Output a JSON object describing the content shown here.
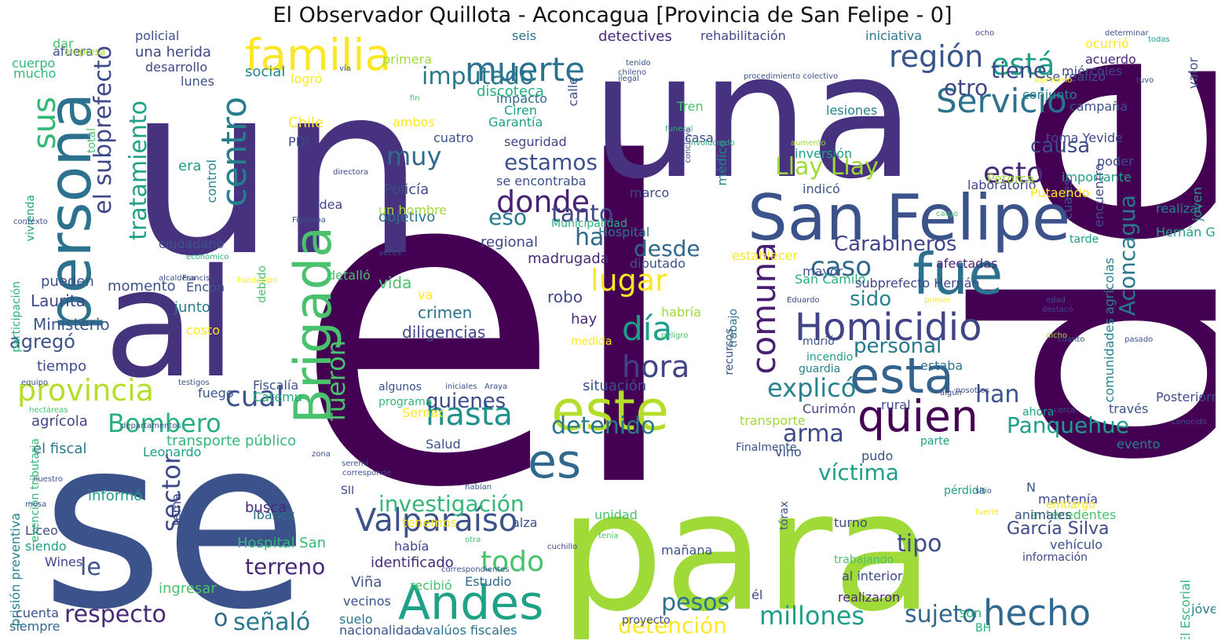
{
  "title": "El Observador Quillota - Aconcagua [Provincia de San Felipe - 0]",
  "palette": [
    "#440154",
    "#46327e",
    "#365c8d",
    "#277f8e",
    "#1fa187",
    "#4ac16d",
    "#a0da39",
    "#fde725"
  ],
  "words": [
    {
      "text": "el",
      "color": "#440154"
    },
    {
      "text": "de",
      "color": "#440154"
    },
    {
      "text": "se",
      "color": "#3b528b"
    },
    {
      "text": "un",
      "color": "#46327e"
    },
    {
      "text": "una",
      "color": "#46327e"
    },
    {
      "text": "para",
      "color": "#a0da39"
    },
    {
      "text": "al",
      "color": "#46337e"
    },
    {
      "text": "San Felipe",
      "color": "#3b528b"
    },
    {
      "text": "persona",
      "color": "#2c728e"
    },
    {
      "text": "familia",
      "color": "#fde725"
    },
    {
      "text": "Brigada",
      "color": "#4ac16d"
    },
    {
      "text": "Andes",
      "color": "#1fa187"
    },
    {
      "text": "este",
      "color": "#b5de2b"
    },
    {
      "text": "Homicidio",
      "color": "#414487"
    },
    {
      "text": "fue",
      "color": "#2c728e"
    },
    {
      "text": "esta",
      "color": "#33638d"
    },
    {
      "text": "quien",
      "color": "#440154"
    },
    {
      "text": "es",
      "color": "#31688e"
    },
    {
      "text": "hecho",
      "color": "#31688e"
    },
    {
      "text": "Valparaíso",
      "color": "#3b528b"
    },
    {
      "text": "Servicio",
      "color": "#2c728e"
    },
    {
      "text": "región",
      "color": "#39568c"
    },
    {
      "text": "está",
      "color": "#1f9e89"
    },
    {
      "text": "muerte",
      "color": "#2c728e"
    },
    {
      "text": "centro",
      "color": "#277f8e"
    },
    {
      "text": "sus",
      "color": "#35b779"
    },
    {
      "text": "donde",
      "color": "#482173"
    },
    {
      "text": "comuna",
      "color": "#481f70"
    },
    {
      "text": "el subprefecto",
      "color": "#3e4989"
    },
    {
      "text": "provincia",
      "color": "#b5de2b"
    },
    {
      "text": "hasta",
      "color": "#21918c"
    },
    {
      "text": "hora",
      "color": "#414487"
    },
    {
      "text": "día",
      "color": "#1f9e89"
    },
    {
      "text": "lugar",
      "color": "#fde725"
    },
    {
      "text": "cual",
      "color": "#3b528b"
    },
    {
      "text": "Bombero",
      "color": "#29af7f"
    },
    {
      "text": "sector",
      "color": "#3e4989"
    },
    {
      "text": "imputado",
      "color": "#2a788e"
    },
    {
      "text": "tratamiento",
      "color": "#1fa187"
    },
    {
      "text": "fueron",
      "color": "#4ac16d"
    },
    {
      "text": "esto",
      "color": "#482878"
    },
    {
      "text": "causa",
      "color": "#3e4989"
    },
    {
      "text": "Llay Llay",
      "color": "#a0da39"
    },
    {
      "text": "Aconcagua",
      "color": "#2a788e"
    },
    {
      "text": "Panquehue",
      "color": "#1f9e89"
    },
    {
      "text": "Carabineros",
      "color": "#404688"
    },
    {
      "text": "caso",
      "color": "#31688e"
    },
    {
      "text": "explicó",
      "color": "#26828e"
    },
    {
      "text": "han",
      "color": "#3b528b"
    },
    {
      "text": "arma",
      "color": "#3e4989"
    },
    {
      "text": "víctima",
      "color": "#1f9e89"
    },
    {
      "text": "investigación",
      "color": "#35b779"
    },
    {
      "text": "todo",
      "color": "#4ac16d"
    },
    {
      "text": "terreno",
      "color": "#482878"
    },
    {
      "text": "le",
      "color": "#3b528b"
    },
    {
      "text": "respecto",
      "color": "#482878"
    },
    {
      "text": "señaló",
      "color": "#2a788e"
    },
    {
      "text": "o",
      "color": "#31688e"
    },
    {
      "text": "pesos",
      "color": "#2c728e"
    },
    {
      "text": "millones",
      "color": "#1f9e89"
    },
    {
      "text": "sujeto",
      "color": "#31688e"
    },
    {
      "text": "detención",
      "color": "#fde725"
    },
    {
      "text": "tipo",
      "color": "#3e4989"
    },
    {
      "text": "García Silva",
      "color": "#3e4989"
    },
    {
      "text": "agregó",
      "color": "#3b528b"
    },
    {
      "text": "muy",
      "color": "#31688e"
    },
    {
      "text": "estamos",
      "color": "#3b528b"
    },
    {
      "text": "eso",
      "color": "#2a788e"
    },
    {
      "text": "tanto",
      "color": "#404688"
    },
    {
      "text": "ha",
      "color": "#31688e"
    },
    {
      "text": "desde",
      "color": "#31688e"
    },
    {
      "text": "quienes",
      "color": "#3e4989"
    },
    {
      "text": "detenido",
      "color": "#2a788e"
    },
    {
      "text": "otro",
      "color": "#404688"
    },
    {
      "text": "tiene",
      "color": "#3e4989"
    },
    {
      "text": "sido",
      "color": "#26828e"
    },
    {
      "text": "personal",
      "color": "#2a788e"
    },
    {
      "text": "Laurita",
      "color": "#3e4989"
    },
    {
      "text": "Ministerio",
      "color": "#3b528b"
    },
    {
      "text": "tiempo",
      "color": "#3e4989"
    },
    {
      "text": "pueden",
      "color": "#3b528b"
    },
    {
      "text": "momento",
      "color": "#3b528b"
    },
    {
      "text": "junto",
      "color": "#2a788e"
    },
    {
      "text": "robo",
      "color": "#404688"
    },
    {
      "text": "hay",
      "color": "#482878"
    },
    {
      "text": "crimen",
      "color": "#2c728e"
    },
    {
      "text": "diligencias",
      "color": "#3e4989"
    },
    {
      "text": "vida",
      "color": "#4ac16d"
    },
    {
      "text": "Policía",
      "color": "#3e4989"
    },
    {
      "text": "objetivo",
      "color": "#2c728e"
    },
    {
      "text": "un hombre",
      "color": "#a0da39"
    },
    {
      "text": "regional",
      "color": "#3e4989"
    },
    {
      "text": "madrugada",
      "color": "#482878"
    },
    {
      "text": "diputado",
      "color": "#3b528b"
    },
    {
      "text": "Hospital",
      "color": "#2c728e"
    },
    {
      "text": "situación",
      "color": "#3b528b"
    },
    {
      "text": "fuego",
      "color": "#3b528b"
    },
    {
      "text": "Fiscalía",
      "color": "#3b528b"
    },
    {
      "text": "Catemu",
      "color": "#29af7f"
    },
    {
      "text": "transporte público",
      "color": "#35b779"
    },
    {
      "text": "el fiscal",
      "color": "#2a788e"
    },
    {
      "text": "agrícola",
      "color": "#404688"
    },
    {
      "text": "Leonardo",
      "color": "#1f9e89"
    },
    {
      "text": "informó",
      "color": "#1f9e89"
    },
    {
      "text": "Ibáñez",
      "color": "#2c728e"
    },
    {
      "text": "busca",
      "color": "#482878"
    },
    {
      "text": "Hospital San",
      "color": "#35b779"
    },
    {
      "text": "identificado",
      "color": "#482878"
    },
    {
      "text": "había",
      "color": "#3e4989"
    },
    {
      "text": "Viña",
      "color": "#3b528b"
    },
    {
      "text": "Estudio",
      "color": "#31688e"
    },
    {
      "text": "recibió",
      "color": "#4ac16d"
    },
    {
      "text": "vecinos",
      "color": "#3b528b"
    },
    {
      "text": "suelo",
      "color": "#2c728e"
    },
    {
      "text": "nacionalidad",
      "color": "#3b528b"
    },
    {
      "text": "avalúos fiscales",
      "color": "#2c728e"
    },
    {
      "text": "siempre",
      "color": "#31688e"
    },
    {
      "text": "cuenta",
      "color": "#3b528b"
    },
    {
      "text": "Wines",
      "color": "#404688"
    },
    {
      "text": "siendo",
      "color": "#1f9e89"
    },
    {
      "text": "Liceo",
      "color": "#3b528b"
    },
    {
      "text": "prisión preventiva",
      "color": "#26828e"
    },
    {
      "text": "exención tributaria",
      "color": "#35b779"
    },
    {
      "text": "participación",
      "color": "#29af7f"
    },
    {
      "text": "vivienda",
      "color": "#1fa187"
    },
    {
      "text": "total",
      "color": "#4ac16d"
    },
    {
      "text": "cuerpo",
      "color": "#35b779"
    },
    {
      "text": "mucho",
      "color": "#35b779"
    },
    {
      "text": "dar",
      "color": "#4ac16d"
    },
    {
      "text": "afuera",
      "color": "#3b528b"
    },
    {
      "text": "empresa",
      "color": "#a0da39"
    },
    {
      "text": "policial",
      "color": "#3b528b"
    },
    {
      "text": "una herida",
      "color": "#3e4989"
    },
    {
      "text": "desarrollo",
      "color": "#3e4989"
    },
    {
      "text": "social",
      "color": "#26828e"
    },
    {
      "text": "logró",
      "color": "#fde725"
    },
    {
      "text": "lunes",
      "color": "#3b528b"
    },
    {
      "text": "Chile",
      "color": "#fde725"
    },
    {
      "text": "PDI",
      "color": "#3e4989"
    },
    {
      "text": "era",
      "color": "#1f9e89"
    },
    {
      "text": "control",
      "color": "#26828e"
    },
    {
      "text": "idea",
      "color": "#404688"
    },
    {
      "text": "ciudadano",
      "color": "#3b528b"
    },
    {
      "text": "debido",
      "color": "#4ac16d"
    },
    {
      "text": "Encón",
      "color": "#3b528b"
    },
    {
      "text": "costo",
      "color": "#fde725"
    },
    {
      "text": "tema",
      "color": "#3e4989"
    },
    {
      "text": "ingresar",
      "color": "#4ac16d"
    },
    {
      "text": "primera",
      "color": "#a0da39"
    },
    {
      "text": "ambos",
      "color": "#fde725"
    },
    {
      "text": "cuatro",
      "color": "#3b528b"
    },
    {
      "text": "impacto",
      "color": "#31688e"
    },
    {
      "text": "Ciren",
      "color": "#1f9e89"
    },
    {
      "text": "Garantía",
      "color": "#1f9e89"
    },
    {
      "text": "calle",
      "color": "#3b528b"
    },
    {
      "text": "discoteca",
      "color": "#29af7f"
    },
    {
      "text": "seguridad",
      "color": "#404688"
    },
    {
      "text": "se encontraba",
      "color": "#3b528b"
    },
    {
      "text": "seis",
      "color": "#2c728e"
    },
    {
      "text": "detectives",
      "color": "#482878"
    },
    {
      "text": "rehabilitación",
      "color": "#404688"
    },
    {
      "text": "iniciativa",
      "color": "#2a788e"
    },
    {
      "text": "ocurrió",
      "color": "#fde725"
    },
    {
      "text": "acuerdo",
      "color": "#482878"
    },
    {
      "text": "se realizó",
      "color": "#3b528b"
    },
    {
      "text": "miércoles",
      "color": "#404688"
    },
    {
      "text": "conjunto",
      "color": "#26828e"
    },
    {
      "text": "campaña",
      "color": "#3b528b"
    },
    {
      "text": "lesiones",
      "color": "#26828e"
    },
    {
      "text": "Tren",
      "color": "#4ac16d"
    },
    {
      "text": "casa",
      "color": "#3e4989"
    },
    {
      "text": "médico",
      "color": "#26828e"
    },
    {
      "text": "inversión",
      "color": "#1f9e89"
    },
    {
      "text": "poder",
      "color": "#3e4989"
    },
    {
      "text": "encuentro",
      "color": "#3e4989"
    },
    {
      "text": "toma Yevide",
      "color": "#3e4989"
    },
    {
      "text": "importante",
      "color": "#1f9e89"
    },
    {
      "text": "cuales",
      "color": "#3b528b"
    },
    {
      "text": "laboratorio",
      "color": "#404688"
    },
    {
      "text": "Putaendo",
      "color": "#fde725"
    },
    {
      "text": "Petorca",
      "color": "#a0da39"
    },
    {
      "text": "indicó",
      "color": "#3b528b"
    },
    {
      "text": "marco",
      "color": "#3e4989"
    },
    {
      "text": "realizar",
      "color": "#26828e"
    },
    {
      "text": "Hernán García",
      "color": "#1fa187"
    },
    {
      "text": "tarde",
      "color": "#1f9e89"
    },
    {
      "text": "establecer",
      "color": "#fde725"
    },
    {
      "text": "mayor",
      "color": "#3b528b"
    },
    {
      "text": "afectadas",
      "color": "#482878"
    },
    {
      "text": "San Camilo",
      "color": "#29af7f"
    },
    {
      "text": "subprefecto Hernán",
      "color": "#3e4989"
    },
    {
      "text": "comunidades agrícolas",
      "color": "#26828e"
    },
    {
      "text": "valor",
      "color": "#3b528b"
    },
    {
      "text": "joven",
      "color": "#1f9e89"
    },
    {
      "text": "murió",
      "color": "#3b528b"
    },
    {
      "text": "incendio",
      "color": "#1f9e89"
    },
    {
      "text": "guardia",
      "color": "#26828e"
    },
    {
      "text": "estaba",
      "color": "#2c728e"
    },
    {
      "text": "recursos",
      "color": "#3b528b"
    },
    {
      "text": "trabajo",
      "color": "#2c728e"
    },
    {
      "text": "rural",
      "color": "#3e4989"
    },
    {
      "text": "Curimón",
      "color": "#404688"
    },
    {
      "text": "transporte",
      "color": "#a0da39"
    },
    {
      "text": "vino",
      "color": "#3b528b"
    },
    {
      "text": "pudo",
      "color": "#3b528b"
    },
    {
      "text": "Finalmente",
      "color": "#3b528b"
    },
    {
      "text": "ahora",
      "color": "#1f9e89"
    },
    {
      "text": "través",
      "color": "#3b528b"
    },
    {
      "text": "Posteriormente",
      "color": "#3e4989"
    },
    {
      "text": "evento",
      "color": "#26828e"
    },
    {
      "text": "parte",
      "color": "#1f9e89"
    },
    {
      "text": "N",
      "color": "#3b528b"
    },
    {
      "text": "mantenía",
      "color": "#3e4989"
    },
    {
      "text": "embargo",
      "color": "#fde725"
    },
    {
      "text": "antecedentes",
      "color": "#4ac16d"
    },
    {
      "text": "animales",
      "color": "#3b528b"
    },
    {
      "text": "vehículo",
      "color": "#3b528b"
    },
    {
      "text": "información",
      "color": "#3e4989"
    },
    {
      "text": "pérdida",
      "color": "#1f9e89"
    },
    {
      "text": "turno",
      "color": "#3e4989"
    },
    {
      "text": "trabajando",
      "color": "#4ac16d"
    },
    {
      "text": "al interior",
      "color": "#3e4989"
    },
    {
      "text": "tórax",
      "color": "#3b528b"
    },
    {
      "text": "realizaron",
      "color": "#482878"
    },
    {
      "text": "son",
      "color": "#29af7f"
    },
    {
      "text": "él",
      "color": "#3e4989"
    },
    {
      "text": "El Escorial",
      "color": "#35b779"
    },
    {
      "text": "jóvenes",
      "color": "#26828e"
    },
    {
      "text": "BH",
      "color": "#29af7f"
    },
    {
      "text": "mañana",
      "color": "#3b528b"
    },
    {
      "text": "unidad",
      "color": "#4ac16d"
    },
    {
      "text": "alza",
      "color": "#3b528b"
    },
    {
      "text": "tenemos",
      "color": "#fde725"
    },
    {
      "text": "proyecto",
      "color": "#3b528b"
    },
    {
      "text": "SII",
      "color": "#3e4989"
    },
    {
      "text": "Salud",
      "color": "#3b528b"
    },
    {
      "text": "Sernac",
      "color": "#fde725"
    },
    {
      "text": "programa",
      "color": "#35b779"
    },
    {
      "text": "algunos",
      "color": "#3b528b"
    },
    {
      "text": "va",
      "color": "#fde725"
    },
    {
      "text": "detalló",
      "color": "#4ac16d"
    },
    {
      "text": "habría",
      "color": "#a0da39"
    },
    {
      "text": "medida",
      "color": "#fde725"
    },
    {
      "text": "Municipalidad",
      "color": "#29af7f"
    },
    {
      "text": "ocho",
      "color": "#3e4989"
    },
    {
      "text": "determinar",
      "color": "#3b528b"
    },
    {
      "text": "todas",
      "color": "#1f9e89"
    },
    {
      "text": "tenido",
      "color": "#3b528b"
    },
    {
      "text": "chileno",
      "color": "#3b528b"
    },
    {
      "text": "ilegal",
      "color": "#3b528b"
    },
    {
      "text": "vía",
      "color": "#3b528b"
    },
    {
      "text": "fin",
      "color": "#4ac16d"
    },
    {
      "text": "funeral",
      "color": "#29af7f"
    },
    {
      "text": "involucrado",
      "color": "#29af7f"
    },
    {
      "text": "concluyó",
      "color": "#3e4989"
    },
    {
      "text": "procedimiento colectivo",
      "color": "#3b528b"
    },
    {
      "text": "aumento",
      "color": "#a0da39"
    },
    {
      "text": "Asimismo",
      "color": "#fde725"
    },
    {
      "text": "tuvo",
      "color": "#3b528b"
    },
    {
      "text": "directora",
      "color": "#3e4989"
    },
    {
      "text": "Figueroa",
      "color": "#3b528b"
    },
    {
      "text": "contexto",
      "color": "#3b528b"
    },
    {
      "text": "económico",
      "color": "#29af7f"
    },
    {
      "text": "Fundación",
      "color": "#fde725"
    },
    {
      "text": "veces",
      "color": "#3b528b"
    },
    {
      "text": "alcaldesa",
      "color": "#3b528b"
    },
    {
      "text": "Francisco",
      "color": "#3e4989"
    },
    {
      "text": "Eduardo",
      "color": "#3e4989"
    },
    {
      "text": "primer",
      "color": "#fde725"
    },
    {
      "text": "edad",
      "color": "#3b528b"
    },
    {
      "text": "destacó",
      "color": "#3e4989"
    },
    {
      "text": "dicho",
      "color": "#a0da39"
    },
    {
      "text": "cuanto",
      "color": "#3b528b"
    },
    {
      "text": "pasado",
      "color": "#3b528b"
    },
    {
      "text": "peligro",
      "color": "#4ac16d"
    },
    {
      "text": "cargo",
      "color": "#4ac16d"
    },
    {
      "text": "testigos",
      "color": "#3b528b"
    },
    {
      "text": "equipo",
      "color": "#3b528b"
    },
    {
      "text": "hectáreas",
      "color": "#4ac16d"
    },
    {
      "text": "departamentos",
      "color": "#3b528b"
    },
    {
      "text": "iniciales",
      "color": "#3b528b"
    },
    {
      "text": "Araya",
      "color": "#3b528b"
    },
    {
      "text": "algún",
      "color": "#3e4989"
    },
    {
      "text": "nosotros",
      "color": "#3e4989"
    },
    {
      "text": "cerca",
      "color": "#3b528b"
    },
    {
      "text": "conocido",
      "color": "#3b528b"
    },
    {
      "text": "zona",
      "color": "#3b528b"
    },
    {
      "text": "seremi",
      "color": "#3b528b"
    },
    {
      "text": "corresponde",
      "color": "#3b528b"
    },
    {
      "text": "nuestro",
      "color": "#3b528b"
    },
    {
      "text": "habían",
      "color": "#3b528b"
    },
    {
      "text": "sitio",
      "color": "#3b528b"
    },
    {
      "text": "fuerte",
      "color": "#fde725"
    },
    {
      "text": "mesa",
      "color": "#3b528b"
    },
    {
      "text": "tenía",
      "color": "#4ac16d"
    },
    {
      "text": "cuchillo",
      "color": "#3e4989"
    },
    {
      "text": "correspondientes",
      "color": "#3b528b"
    },
    {
      "text": "otra",
      "color": "#4ac16d"
    }
  ]
}
